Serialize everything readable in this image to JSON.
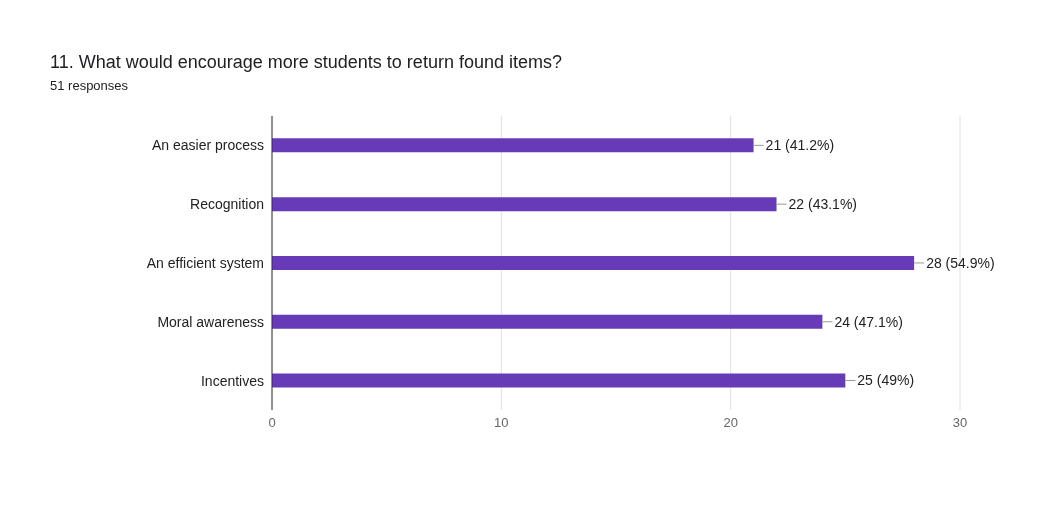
{
  "chart_data": {
    "type": "bar",
    "orientation": "horizontal",
    "title": "11. What would encourage more students to return found items?",
    "subtitle": "51 responses",
    "categories": [
      "An easier process",
      "Recognition",
      "An efficient system",
      "Moral awareness",
      "Incentives"
    ],
    "values": [
      21,
      22,
      28,
      24,
      25
    ],
    "value_labels": [
      "21 (41.2%)",
      "22 (43.1%)",
      "28 (54.9%)",
      "24 (47.1%)",
      "25 (49%)"
    ],
    "color": "#673ab7",
    "xlim": [
      0,
      30
    ],
    "xticks": [
      0,
      10,
      20,
      30
    ],
    "grid": "x",
    "legend": false
  }
}
